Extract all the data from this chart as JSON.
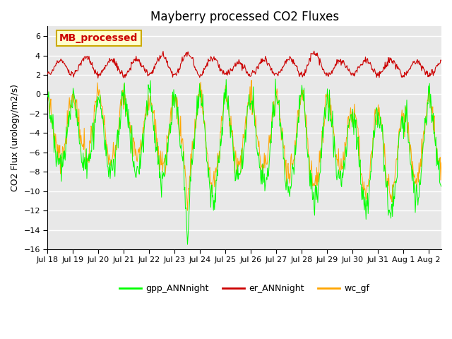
{
  "title": "Mayberry processed CO2 Fluxes",
  "ylabel": "CO2 Flux (urology/m2/s)",
  "ylim": [
    -16,
    7
  ],
  "yticks": [
    -16,
    -14,
    -12,
    -10,
    -8,
    -6,
    -4,
    -2,
    0,
    2,
    4,
    6
  ],
  "bg_color": "#ffffff",
  "plot_bg_color": "#e8e8e8",
  "grid_color": "#ffffff",
  "line_colors": {
    "gpp": "#00ff00",
    "er": "#cc0000",
    "wc": "#ffa500"
  },
  "inset_label": "MB_processed",
  "inset_label_color": "#cc0000",
  "inset_bg": "#ffffcc",
  "inset_edge": "#ccaa00",
  "x_labels": [
    "Jul 18",
    "Jul 19",
    "Jul 20",
    "Jul 21",
    "Jul 22",
    "Jul 23",
    "Jul 24",
    "Jul 25",
    "Jul 26",
    "Jul 27",
    "Jul 28",
    "Jul 29",
    "Jul 30",
    "Jul 31",
    "Aug 1",
    "Aug 2"
  ],
  "n_days": 15.5,
  "points_per_day": 48,
  "seed": 42
}
